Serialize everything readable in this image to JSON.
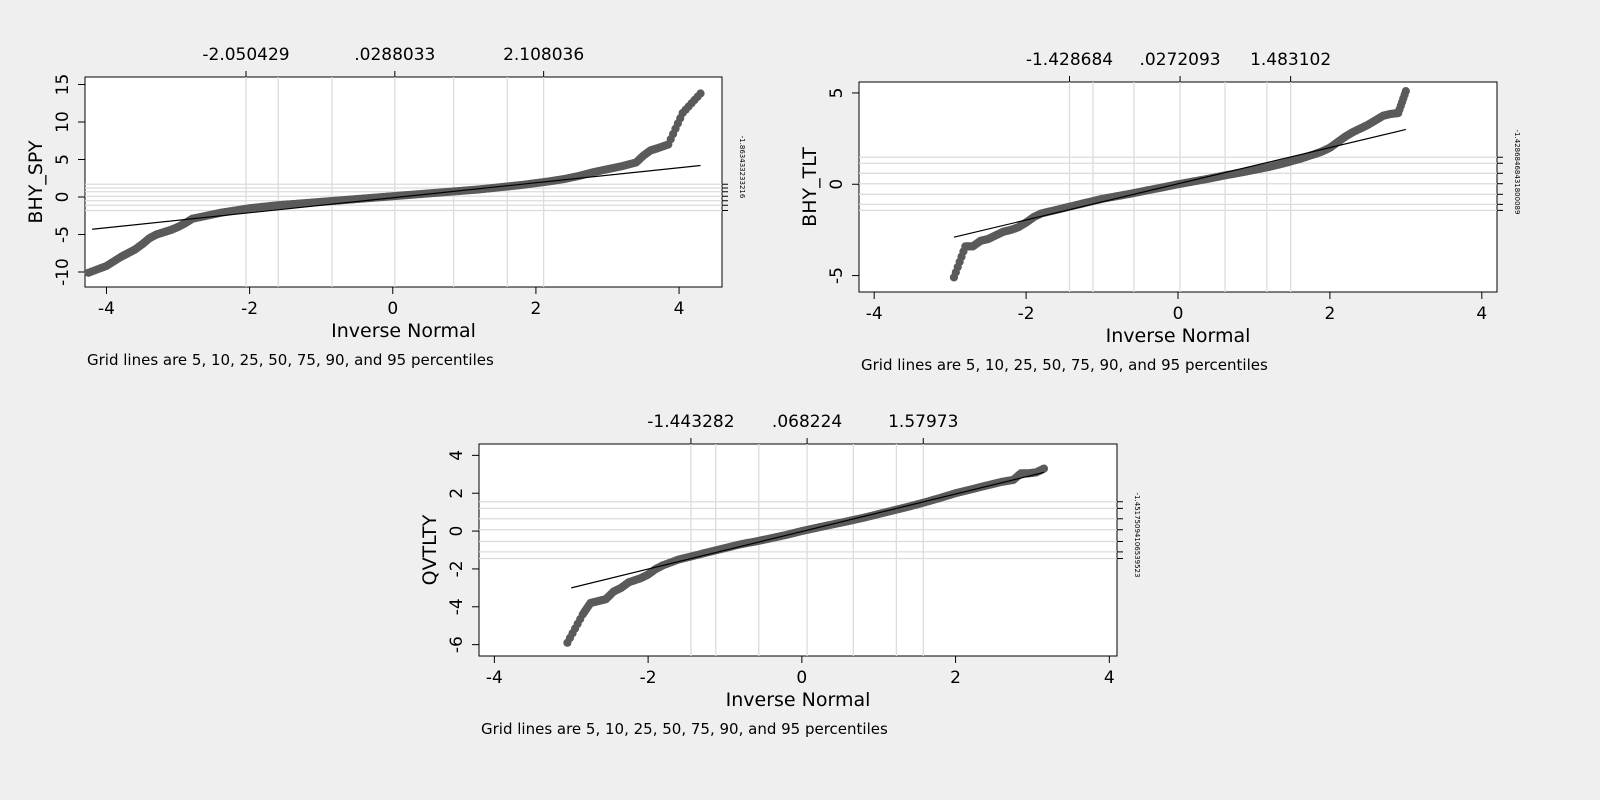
{
  "chart_data": [
    {
      "type": "scatter",
      "title": "",
      "xlabel": "Inverse Normal",
      "ylabel": "BHY_SPY",
      "xlim": [
        -4.3,
        4.6
      ],
      "ylim": [
        -12,
        16
      ],
      "x_ticks": [
        -4,
        -2,
        0,
        2,
        4
      ],
      "y_ticks": [
        -10,
        -5,
        0,
        5,
        10,
        15
      ],
      "y_tick_labels": [
        "-10",
        "-5",
        "0",
        "5",
        "10",
        "15"
      ],
      "grid": true,
      "top_axis": {
        "tick_values": [
          -2.050429,
          0.0288033,
          2.108036
        ],
        "tick_labels": [
          "-2.050429",
          ".0288033",
          "2.108036"
        ],
        "grid_x": [
          -2.050429,
          -1.6,
          -0.85,
          0.0288033,
          0.85,
          1.6,
          2.108036
        ]
      },
      "right_axis": {
        "grid_y": [
          -1.8,
          -1.1,
          -0.5,
          0.1,
          0.7,
          1.2,
          1.7
        ],
        "label": "-1.863433233216"
      },
      "fit_line": {
        "x": [
          -4.2,
          4.3
        ],
        "y": [
          -4.3,
          4.2
        ]
      },
      "caption": "Grid lines are 5, 10, 25, 50, 75, 90, and 95 percentiles",
      "points": [
        [
          -4.25,
          -10.1
        ],
        [
          -4.0,
          -9.2
        ],
        [
          -3.8,
          -8.0
        ],
        [
          -3.7,
          -7.5
        ],
        [
          -3.6,
          -7.0
        ],
        [
          -3.5,
          -6.3
        ],
        [
          -3.4,
          -5.5
        ],
        [
          -3.3,
          -5.0
        ],
        [
          -3.2,
          -4.7
        ],
        [
          -3.1,
          -4.4
        ],
        [
          -3.0,
          -4.0
        ],
        [
          -2.9,
          -3.5
        ],
        [
          -2.8,
          -2.9
        ],
        [
          -2.6,
          -2.5
        ],
        [
          -2.4,
          -2.1
        ],
        [
          -2.2,
          -1.8
        ],
        [
          -2.0,
          -1.5
        ],
        [
          -1.8,
          -1.3
        ],
        [
          -1.6,
          -1.1
        ],
        [
          -1.4,
          -0.95
        ],
        [
          -1.2,
          -0.8
        ],
        [
          -1.0,
          -0.65
        ],
        [
          -0.8,
          -0.5
        ],
        [
          -0.6,
          -0.35
        ],
        [
          -0.4,
          -0.2
        ],
        [
          -0.2,
          -0.05
        ],
        [
          0.0,
          0.1
        ],
        [
          0.2,
          0.25
        ],
        [
          0.4,
          0.4
        ],
        [
          0.6,
          0.55
        ],
        [
          0.8,
          0.7
        ],
        [
          1.0,
          0.85
        ],
        [
          1.2,
          1.0
        ],
        [
          1.4,
          1.2
        ],
        [
          1.6,
          1.4
        ],
        [
          1.8,
          1.6
        ],
        [
          2.0,
          1.85
        ],
        [
          2.2,
          2.1
        ],
        [
          2.4,
          2.4
        ],
        [
          2.6,
          2.8
        ],
        [
          2.8,
          3.3
        ],
        [
          3.0,
          3.7
        ],
        [
          3.2,
          4.1
        ],
        [
          3.4,
          4.6
        ],
        [
          3.5,
          5.5
        ],
        [
          3.6,
          6.2
        ],
        [
          3.7,
          6.5
        ],
        [
          3.85,
          7.0
        ],
        [
          4.05,
          11.2
        ],
        [
          4.3,
          13.8
        ]
      ]
    },
    {
      "type": "scatter",
      "title": "",
      "xlabel": "Inverse Normal",
      "ylabel": "BHY_TLT",
      "xlim": [
        -4.2,
        4.2
      ],
      "ylim": [
        -5.9,
        5.6
      ],
      "x_ticks": [
        -4,
        -2,
        0,
        2,
        4
      ],
      "y_ticks": [
        -5,
        0,
        5
      ],
      "y_tick_labels": [
        "-5",
        "0",
        "5"
      ],
      "grid": true,
      "top_axis": {
        "tick_values": [
          -1.428684,
          0.0272093,
          1.483102
        ],
        "tick_labels": [
          "-1.428684",
          ".0272093",
          "1.483102"
        ],
        "grid_x": [
          -1.428684,
          -1.12,
          -0.58,
          0.0272093,
          0.62,
          1.17,
          1.483102
        ]
      },
      "right_axis": {
        "grid_y": [
          -1.43,
          -1.1,
          -0.55,
          0.03,
          0.6,
          1.15,
          1.48
        ],
        "label": "-1.42868468431800089"
      },
      "fit_line": {
        "x": [
          -2.95,
          3.0
        ],
        "y": [
          -2.9,
          3.0
        ]
      },
      "caption": "Grid lines are 5, 10, 25, 50, 75, 90, and 95 percentiles",
      "points": [
        [
          -2.95,
          -5.1
        ],
        [
          -2.8,
          -3.4
        ],
        [
          -2.7,
          -3.4
        ],
        [
          -2.6,
          -3.1
        ],
        [
          -2.5,
          -3.0
        ],
        [
          -2.4,
          -2.8
        ],
        [
          -2.3,
          -2.6
        ],
        [
          -2.2,
          -2.5
        ],
        [
          -2.1,
          -2.35
        ],
        [
          -2.0,
          -2.1
        ],
        [
          -1.9,
          -1.8
        ],
        [
          -1.8,
          -1.6
        ],
        [
          -1.6,
          -1.4
        ],
        [
          -1.4,
          -1.2
        ],
        [
          -1.2,
          -1.0
        ],
        [
          -1.0,
          -0.8
        ],
        [
          -0.8,
          -0.65
        ],
        [
          -0.6,
          -0.5
        ],
        [
          -0.4,
          -0.33
        ],
        [
          -0.2,
          -0.17
        ],
        [
          0.0,
          0.0
        ],
        [
          0.2,
          0.15
        ],
        [
          0.4,
          0.3
        ],
        [
          0.6,
          0.47
        ],
        [
          0.8,
          0.62
        ],
        [
          1.0,
          0.78
        ],
        [
          1.2,
          0.95
        ],
        [
          1.4,
          1.15
        ],
        [
          1.6,
          1.38
        ],
        [
          1.8,
          1.65
        ],
        [
          1.9,
          1.8
        ],
        [
          2.0,
          2.0
        ],
        [
          2.1,
          2.3
        ],
        [
          2.2,
          2.6
        ],
        [
          2.3,
          2.85
        ],
        [
          2.4,
          3.05
        ],
        [
          2.5,
          3.25
        ],
        [
          2.6,
          3.5
        ],
        [
          2.7,
          3.75
        ],
        [
          2.8,
          3.85
        ],
        [
          2.9,
          3.9
        ],
        [
          3.0,
          5.1
        ]
      ]
    },
    {
      "type": "scatter",
      "title": "",
      "xlabel": "Inverse Normal",
      "ylabel": "QVTLTY",
      "xlim": [
        -4.2,
        4.1
      ],
      "ylim": [
        -6.6,
        4.6
      ],
      "x_ticks": [
        -4,
        -2,
        0,
        2,
        4
      ],
      "y_ticks": [
        -6,
        -4,
        -2,
        0,
        2,
        4
      ],
      "y_tick_labels": [
        "-6",
        "-4",
        "-2",
        "0",
        "2",
        "4"
      ],
      "grid": true,
      "top_axis": {
        "tick_values": [
          -1.443282,
          0.068224,
          1.57973
        ],
        "tick_labels": [
          "-1.443282",
          ".068224",
          "1.57973"
        ],
        "grid_x": [
          -1.443282,
          -1.12,
          -0.56,
          0.068224,
          0.67,
          1.23,
          1.57973
        ]
      },
      "right_axis": {
        "grid_y": [
          -1.45,
          -1.1,
          -0.55,
          0.07,
          0.65,
          1.2,
          1.55
        ],
        "label": "-1.45175094106539523"
      },
      "fit_line": {
        "x": [
          -3.0,
          3.15
        ],
        "y": [
          -3.0,
          3.1
        ]
      },
      "caption": "Grid lines are 5, 10, 25, 50, 75, 90, and 95 percentiles",
      "points": [
        [
          -3.05,
          -5.9
        ],
        [
          -2.85,
          -4.4
        ],
        [
          -2.75,
          -3.8
        ],
        [
          -2.65,
          -3.7
        ],
        [
          -2.55,
          -3.6
        ],
        [
          -2.45,
          -3.2
        ],
        [
          -2.35,
          -3.0
        ],
        [
          -2.25,
          -2.7
        ],
        [
          -2.1,
          -2.5
        ],
        [
          -2.0,
          -2.3
        ],
        [
          -1.9,
          -2.0
        ],
        [
          -1.8,
          -1.8
        ],
        [
          -1.6,
          -1.5
        ],
        [
          -1.4,
          -1.3
        ],
        [
          -1.2,
          -1.1
        ],
        [
          -1.0,
          -0.9
        ],
        [
          -0.8,
          -0.7
        ],
        [
          -0.6,
          -0.55
        ],
        [
          -0.4,
          -0.38
        ],
        [
          -0.2,
          -0.2
        ],
        [
          0.0,
          0.0
        ],
        [
          0.2,
          0.18
        ],
        [
          0.4,
          0.35
        ],
        [
          0.6,
          0.52
        ],
        [
          0.8,
          0.7
        ],
        [
          1.0,
          0.9
        ],
        [
          1.2,
          1.1
        ],
        [
          1.4,
          1.3
        ],
        [
          1.6,
          1.52
        ],
        [
          1.8,
          1.75
        ],
        [
          2.0,
          2.0
        ],
        [
          2.2,
          2.2
        ],
        [
          2.4,
          2.4
        ],
        [
          2.6,
          2.6
        ],
        [
          2.75,
          2.7
        ],
        [
          2.85,
          3.05
        ],
        [
          2.95,
          3.05
        ],
        [
          3.05,
          3.1
        ],
        [
          3.15,
          3.3
        ]
      ]
    }
  ]
}
